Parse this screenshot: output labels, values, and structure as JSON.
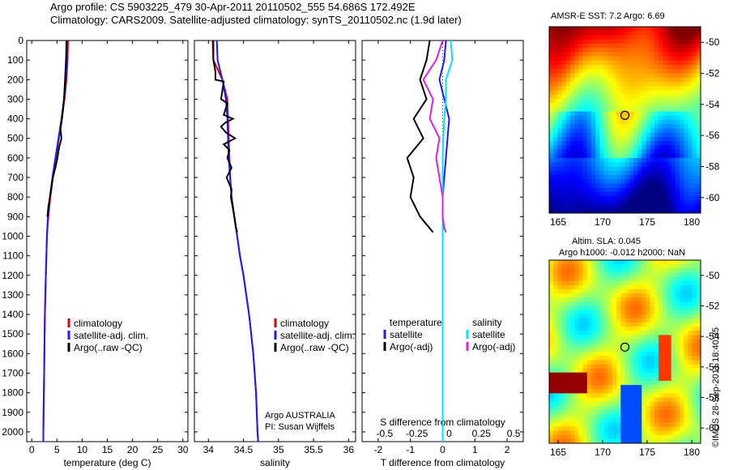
{
  "titles": {
    "line1": "Argo profile: CS 5903225_479 30-Apr-2011 20110502_555 54.686S 172.492E",
    "line2": "Climatology: CARS2009. Satellite-adjusted climatology: synTS_20110502.nc (1.9d later)"
  },
  "colors": {
    "climatology": "#e00000",
    "satellite": "#1a1aff",
    "argo": "#000000",
    "s_satellite": "#00e5ff",
    "s_argo": "#e020e0"
  },
  "chart_data": [
    {
      "type": "line",
      "name": "temperature-panel",
      "xlabel": "temperature (deg C)",
      "ylabel": "",
      "xlim": [
        -1,
        31
      ],
      "ylim": [
        2050,
        0
      ],
      "xticks": [
        0,
        5,
        10,
        15,
        20,
        25,
        30
      ],
      "yticks": [
        0,
        100,
        200,
        300,
        400,
        500,
        600,
        700,
        800,
        900,
        1000,
        1100,
        1200,
        1300,
        1400,
        1500,
        1600,
        1700,
        1800,
        1900,
        2000
      ],
      "legend": [
        "climatology",
        "satellite-adj. clim.",
        "Argo(..raw -QC)"
      ],
      "legend_position": "lower-center",
      "series": [
        {
          "name": "climatology",
          "color_key": "climatology",
          "x": [
            7.2,
            7.1,
            6.9,
            6.5,
            6.0,
            5.4,
            4.8,
            4.2,
            3.7,
            3.3,
            3.0,
            2.9,
            2.8,
            2.7,
            2.6,
            2.55,
            2.5,
            2.45,
            2.4,
            2.35,
            2.3,
            2.3
          ],
          "y": [
            0,
            100,
            200,
            300,
            400,
            500,
            600,
            700,
            800,
            900,
            1000,
            1100,
            1200,
            1300,
            1400,
            1500,
            1600,
            1700,
            1800,
            1900,
            2000,
            2050
          ]
        },
        {
          "name": "satellite-adj. clim.",
          "color_key": "satellite",
          "x": [
            7.0,
            6.95,
            6.8,
            6.4,
            5.9,
            5.3,
            4.7,
            4.1,
            3.6,
            3.2,
            3.0,
            2.9,
            2.8,
            2.7,
            2.6,
            2.55,
            2.5,
            2.45,
            2.4,
            2.35,
            2.3,
            2.3
          ],
          "y": [
            0,
            100,
            200,
            300,
            400,
            500,
            600,
            700,
            800,
            900,
            1000,
            1100,
            1200,
            1300,
            1400,
            1500,
            1600,
            1700,
            1800,
            1900,
            2000,
            2050
          ]
        },
        {
          "name": "Argo(..raw -QC)",
          "color_key": "argo",
          "x": [
            6.9,
            6.8,
            6.6,
            6.4,
            6.2,
            6.0,
            5.7,
            5.9,
            5.4,
            5.1,
            4.7,
            4.2,
            3.9,
            3.6,
            3.3,
            3.1
          ],
          "y": [
            0,
            100,
            200,
            300,
            350,
            400,
            450,
            500,
            550,
            600,
            650,
            700,
            750,
            800,
            850,
            900
          ]
        }
      ]
    },
    {
      "type": "line",
      "name": "salinity-panel",
      "xlabel": "salinity",
      "ylabel": "",
      "xlim": [
        33.8,
        36.1
      ],
      "ylim": [
        2050,
        0
      ],
      "xticks": [
        34,
        34.5,
        35,
        35.5,
        36
      ],
      "legend": [
        "climatology",
        "satellite-adj. clim.",
        "Argo(..raw -QC)"
      ],
      "legend_position": "lower-right",
      "annotation": [
        "Argo AUSTRALIA",
        "PI: Susan Wijffels"
      ],
      "series": [
        {
          "name": "climatology",
          "color_key": "climatology",
          "x": [
            34.06,
            34.07,
            34.2,
            34.27,
            34.28,
            34.29,
            34.3,
            34.31,
            34.33,
            34.37,
            34.41,
            34.45,
            34.5,
            34.54,
            34.58,
            34.61,
            34.64,
            34.66,
            34.68,
            34.69,
            34.7,
            34.71
          ],
          "y": [
            0,
            100,
            200,
            300,
            400,
            500,
            600,
            700,
            800,
            900,
            1000,
            1100,
            1200,
            1300,
            1400,
            1500,
            1600,
            1700,
            1800,
            1900,
            2000,
            2050
          ]
        },
        {
          "name": "satellite-adj. clim.",
          "color_key": "satellite",
          "x": [
            34.12,
            34.13,
            34.2,
            34.25,
            34.27,
            34.28,
            34.29,
            34.31,
            34.33,
            34.37,
            34.41,
            34.45,
            34.5,
            34.54,
            34.58,
            34.61,
            34.64,
            34.66,
            34.68,
            34.69,
            34.7,
            34.71
          ],
          "y": [
            0,
            100,
            200,
            300,
            400,
            500,
            600,
            700,
            800,
            900,
            1000,
            1100,
            1200,
            1300,
            1400,
            1500,
            1600,
            1700,
            1800,
            1900,
            2000,
            2050
          ]
        },
        {
          "name": "Argo(..raw -QC)",
          "color_key": "argo",
          "x": [
            34.07,
            34.07,
            34.1,
            34.1,
            34.22,
            34.18,
            34.27,
            34.22,
            34.35,
            34.24,
            34.18,
            34.25,
            34.38,
            34.22,
            34.3,
            34.27,
            34.33,
            34.26,
            34.33,
            34.32,
            34.36,
            34.39,
            34.41
          ],
          "y": [
            0,
            100,
            160,
            200,
            210,
            300,
            320,
            380,
            400,
            420,
            440,
            470,
            500,
            530,
            560,
            600,
            650,
            700,
            760,
            800,
            880,
            950,
            980
          ]
        }
      ]
    },
    {
      "type": "line",
      "name": "difference-panel",
      "xlabel": "T difference from climatology",
      "xlabel_top": "S difference from climatology",
      "ylabel": "",
      "xlim": [
        -2.5,
        2.5
      ],
      "ylim": [
        2050,
        0
      ],
      "xticks": [
        -2,
        -1,
        0,
        1,
        2
      ],
      "s_xticks": [
        "-0.5",
        "-0.25",
        "0",
        "0.25",
        "0.5"
      ],
      "legend_temperature_title": "temperature",
      "legend_salinity_title": "salinity",
      "legend_temperature": [
        "satellite",
        "Argo(-adj)"
      ],
      "legend_salinity": [
        "satellite",
        "Argo(-adj)"
      ],
      "series": [
        {
          "name": "temperature satellite",
          "color_key": "satellite",
          "x": [
            0.1,
            0.05,
            -0.1,
            0.05,
            0.2,
            0.15,
            0.1,
            0.05,
            0.0,
            0.0,
            0.0,
            0.0,
            0.0,
            0.0,
            0.0,
            0.0,
            0.0,
            0.0,
            0.0,
            0.0,
            0.0,
            0.0
          ],
          "y": [
            0,
            100,
            200,
            300,
            400,
            500,
            600,
            700,
            800,
            900,
            1000,
            1100,
            1200,
            1300,
            1400,
            1500,
            1600,
            1700,
            1800,
            1900,
            2000,
            2050
          ]
        },
        {
          "name": "temperature Argo(-adj)",
          "color_key": "argo",
          "x": [
            -0.4,
            -0.5,
            -0.7,
            -0.5,
            -0.9,
            -0.6,
            -1.1,
            -0.9,
            -1.0,
            -0.7,
            -0.4,
            -0.3
          ],
          "y": [
            0,
            100,
            200,
            300,
            400,
            500,
            600,
            700,
            800,
            900,
            960,
            980
          ]
        },
        {
          "name": "salinity satellite",
          "color_key": "s_satellite",
          "x": [
            0.25,
            0.3,
            0.1,
            0.1,
            0.05,
            0.02,
            0.0,
            0.0,
            0.0,
            0.0,
            0.0,
            0.0,
            0.0,
            0.0,
            0.0,
            0.0,
            0.0,
            0.0,
            0.0,
            0.0,
            0.0,
            0.0
          ],
          "y": [
            0,
            100,
            200,
            300,
            400,
            500,
            600,
            700,
            800,
            900,
            1000,
            1100,
            1200,
            1300,
            1400,
            1500,
            1600,
            1700,
            1800,
            1900,
            2000,
            2050
          ]
        },
        {
          "name": "salinity Argo(-adj)",
          "color_key": "s_argo",
          "x": [
            0.0,
            -0.2,
            -0.6,
            -0.3,
            -0.4,
            -0.1,
            -0.2,
            -0.1,
            0.0,
            0.0,
            0.05,
            0.1
          ],
          "y": [
            0,
            100,
            200,
            300,
            400,
            500,
            600,
            700,
            800,
            900,
            960,
            980
          ]
        }
      ]
    },
    {
      "type": "heatmap",
      "name": "sst-map",
      "title": "AMSR-E SST: 7.2 Argo: 6.69",
      "xlim": [
        164,
        181
      ],
      "ylim": [
        -61,
        -49
      ],
      "xticks": [
        165,
        170,
        175,
        180
      ],
      "yticks": [
        -50,
        -52,
        -54,
        -56,
        -58,
        -60
      ],
      "marker": {
        "lon": 172.5,
        "lat": -54.7
      }
    },
    {
      "type": "heatmap",
      "name": "sla-map",
      "title": "Altim. SLA: 0.045",
      "subtitle": "Argo h1000: -0.012 h2000: NaN",
      "xlim": [
        164,
        181
      ],
      "ylim": [
        -61,
        -49
      ],
      "xticks": [
        165,
        170,
        175,
        180
      ],
      "yticks": [
        -50,
        -52,
        -54,
        -56,
        -58,
        -60
      ],
      "marker": {
        "lon": 172.5,
        "lat": -54.7
      }
    }
  ],
  "footer": {
    "stamp": "©IMOS 28-Sep-2011 18:40:35"
  }
}
